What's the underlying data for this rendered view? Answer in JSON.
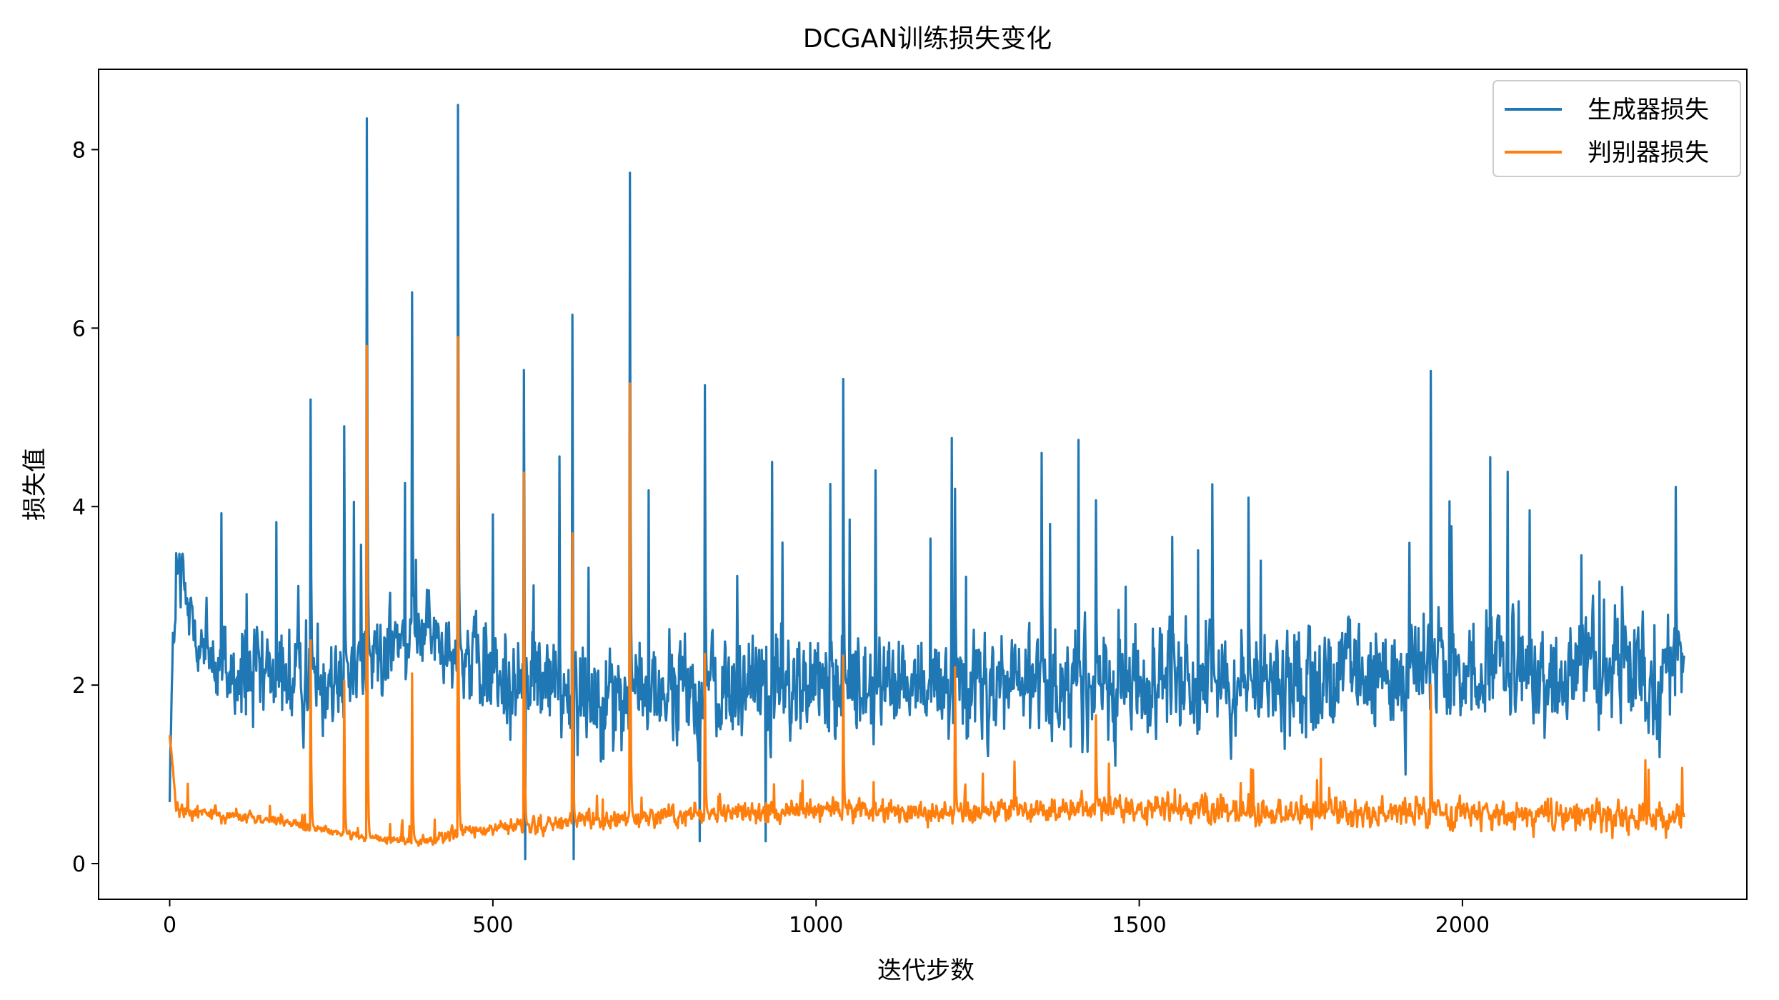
{
  "chart_data": {
    "type": "line",
    "title": "DCGAN训练损失变化",
    "xlabel": "迭代步数",
    "ylabel": "损失值",
    "xlim": [
      -110,
      2440
    ],
    "ylim": [
      -0.4,
      8.9
    ],
    "xticks": [
      0,
      500,
      1000,
      1500,
      2000
    ],
    "xtick_labels": [
      "0",
      "500",
      "1000",
      "1500",
      "2000"
    ],
    "yticks": [
      0,
      2,
      4,
      6,
      8
    ],
    "ytick_labels": [
      "0",
      "2",
      "4",
      "6",
      "8"
    ],
    "grid": false,
    "legend_position": "top-right",
    "series": [
      {
        "name": "生成器损失",
        "color": "#1f77b4",
        "n_points": 2344,
        "x_start": 0,
        "baseline": [
          [
            0,
            1.2
          ],
          [
            10,
            3.2
          ],
          [
            60,
            2.3
          ],
          [
            150,
            2.0
          ],
          [
            300,
            2.3
          ],
          [
            400,
            2.6
          ],
          [
            500,
            2.1
          ],
          [
            700,
            1.9
          ],
          [
            1000,
            2.0
          ],
          [
            1500,
            2.0
          ],
          [
            2000,
            2.1
          ],
          [
            2343,
            2.2
          ]
        ],
        "noise_amp": [
          [
            0,
            0.8
          ],
          [
            300,
            0.8
          ],
          [
            400,
            0.55
          ],
          [
            500,
            0.8
          ],
          [
            2343,
            0.85
          ]
        ],
        "spikes": [
          [
            218,
            5.2
          ],
          [
            270,
            4.9
          ],
          [
            305,
            8.35
          ],
          [
            375,
            6.4
          ],
          [
            446,
            8.5
          ],
          [
            548,
            5.53
          ],
          [
            623,
            6.15
          ],
          [
            712,
            7.74
          ],
          [
            828,
            5.36
          ],
          [
            1042,
            5.43
          ],
          [
            1215,
            4.2
          ],
          [
            1349,
            4.6
          ],
          [
            1433,
            4.07
          ],
          [
            1613,
            4.25
          ],
          [
            1669,
            4.1
          ],
          [
            1951,
            5.52
          ],
          [
            2330,
            4.22
          ]
        ],
        "dips": [
          [
            548,
            0.05
          ],
          [
            623,
            0.05
          ],
          [
            818,
            0.25
          ],
          [
            920,
            0.25
          ]
        ]
      },
      {
        "name": "判别器损失",
        "color": "#ff7f0e",
        "n_points": 2344,
        "x_start": 0,
        "baseline": [
          [
            0,
            1.45
          ],
          [
            10,
            0.6
          ],
          [
            150,
            0.5
          ],
          [
            300,
            0.28
          ],
          [
            400,
            0.25
          ],
          [
            450,
            0.35
          ],
          [
            600,
            0.45
          ],
          [
            800,
            0.55
          ],
          [
            1000,
            0.6
          ],
          [
            1200,
            0.58
          ],
          [
            1500,
            0.62
          ],
          [
            2000,
            0.55
          ],
          [
            2343,
            0.5
          ]
        ],
        "noise_amp": [
          [
            0,
            0.12
          ],
          [
            300,
            0.05
          ],
          [
            450,
            0.1
          ],
          [
            800,
            0.15
          ],
          [
            1500,
            0.2
          ],
          [
            2343,
            0.22
          ]
        ],
        "spikes": [
          [
            218,
            2.5
          ],
          [
            270,
            2.05
          ],
          [
            305,
            5.8
          ],
          [
            375,
            2.13
          ],
          [
            446,
            5.9
          ],
          [
            548,
            4.38
          ],
          [
            623,
            3.7
          ],
          [
            712,
            5.38
          ],
          [
            828,
            2.35
          ],
          [
            1042,
            2.33
          ],
          [
            1215,
            2.2
          ],
          [
            1433,
            1.66
          ],
          [
            1951,
            2.0
          ]
        ]
      }
    ]
  }
}
